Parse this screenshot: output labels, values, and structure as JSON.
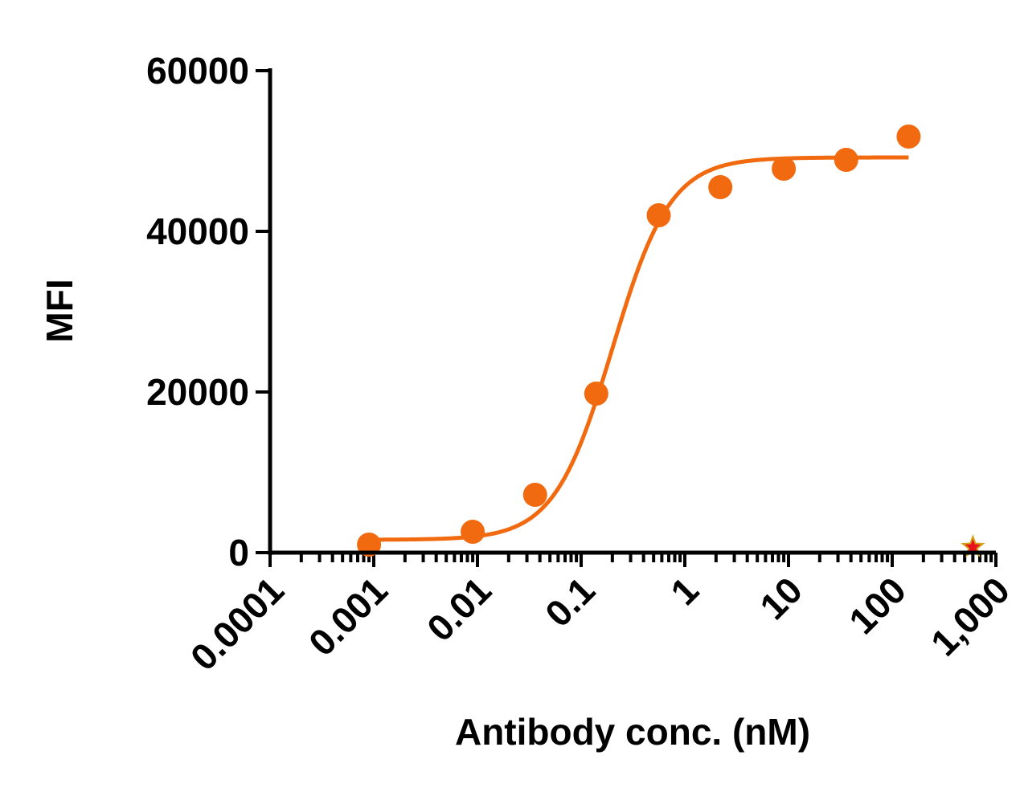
{
  "chart_data": {
    "type": "scatter",
    "title": "",
    "xlabel": "Antibody conc. (nM)",
    "ylabel": "MFI",
    "x_scale": "log",
    "xlim": [
      0.0001,
      1000
    ],
    "ylim": [
      0,
      60000
    ],
    "x_ticks": [
      "0.0001",
      "0.001",
      "0.01",
      "0.1",
      "1",
      "10",
      "100",
      "1,000"
    ],
    "y_ticks": [
      "0",
      "20000",
      "40000",
      "60000"
    ],
    "grid": false,
    "legend": "none",
    "colors": {
      "series": "#f26a10",
      "marker_star": "#e8141b",
      "marker_star_outline": "#d4a017"
    },
    "series": [
      {
        "marker": "circle",
        "color": "#f26a10",
        "points": [
          {
            "x": 0.0009,
            "y": 1000
          },
          {
            "x": 0.009,
            "y": 2600
          },
          {
            "x": 0.036,
            "y": 7200
          },
          {
            "x": 0.14,
            "y": 19800
          },
          {
            "x": 0.56,
            "y": 42000
          },
          {
            "x": 2.2,
            "y": 45500
          },
          {
            "x": 9,
            "y": 47800
          },
          {
            "x": 36,
            "y": 48900
          },
          {
            "x": 144,
            "y": 51800
          }
        ],
        "fit": {
          "bottom": 1600,
          "top": 49200,
          "ec50": 0.2,
          "hill": 1.55,
          "x_range": [
            0.0009,
            144
          ]
        }
      },
      {
        "marker": "star",
        "color": "#e8141b",
        "points": [
          {
            "x": 600,
            "y": 400
          }
        ]
      }
    ]
  }
}
